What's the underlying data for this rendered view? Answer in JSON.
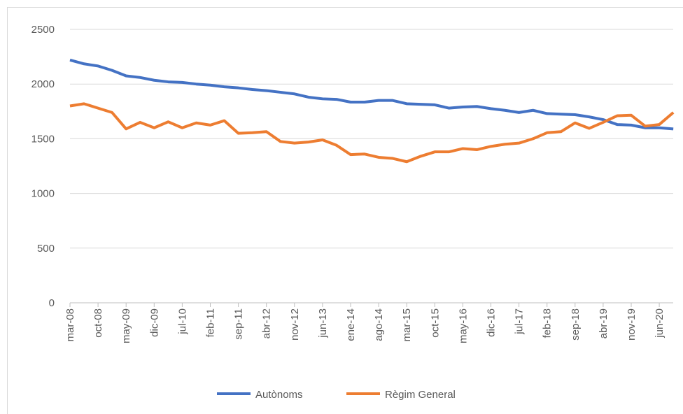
{
  "chart_data": {
    "type": "line",
    "categories": [
      "mar-08",
      null,
      "oct-08",
      null,
      "may-09",
      null,
      "dic-09",
      null,
      "jul-10",
      null,
      "feb-11",
      null,
      "sep-11",
      null,
      "abr-12",
      null,
      "nov-12",
      null,
      "jun-13",
      null,
      "ene-14",
      null,
      "ago-14",
      null,
      "mar-15",
      null,
      "oct-15",
      null,
      "may-16",
      null,
      "dic-16",
      null,
      "jul-17",
      null,
      "feb-18",
      null,
      "sep-18",
      null,
      "abr-19",
      null,
      "nov-19",
      null,
      "jun-20",
      null
    ],
    "series": [
      {
        "name": "Autònoms",
        "color": "#4472c4",
        "values": [
          2220,
          2185,
          2165,
          2125,
          2075,
          2060,
          2035,
          2020,
          2015,
          2000,
          1990,
          1975,
          1965,
          1950,
          1940,
          1925,
          1910,
          1880,
          1865,
          1860,
          1835,
          1835,
          1850,
          1850,
          1820,
          1815,
          1810,
          1780,
          1790,
          1795,
          1775,
          1760,
          1740,
          1760,
          1730,
          1725,
          1720,
          1700,
          1675,
          1630,
          1625,
          1600,
          1600,
          1590
        ]
      },
      {
        "name": "Règim General",
        "color": "#ed7d31",
        "values": [
          1800,
          1820,
          1780,
          1740,
          1590,
          1650,
          1600,
          1655,
          1600,
          1645,
          1625,
          1665,
          1550,
          1555,
          1565,
          1475,
          1460,
          1470,
          1490,
          1440,
          1355,
          1360,
          1330,
          1320,
          1290,
          1340,
          1380,
          1380,
          1410,
          1400,
          1430,
          1450,
          1460,
          1500,
          1555,
          1565,
          1645,
          1595,
          1650,
          1710,
          1715,
          1615,
          1630,
          1740
        ]
      }
    ],
    "ylim": [
      0,
      2500
    ],
    "yticks": [
      0,
      500,
      1000,
      1500,
      2000,
      2500
    ],
    "grid": true,
    "legend": "bottom"
  }
}
